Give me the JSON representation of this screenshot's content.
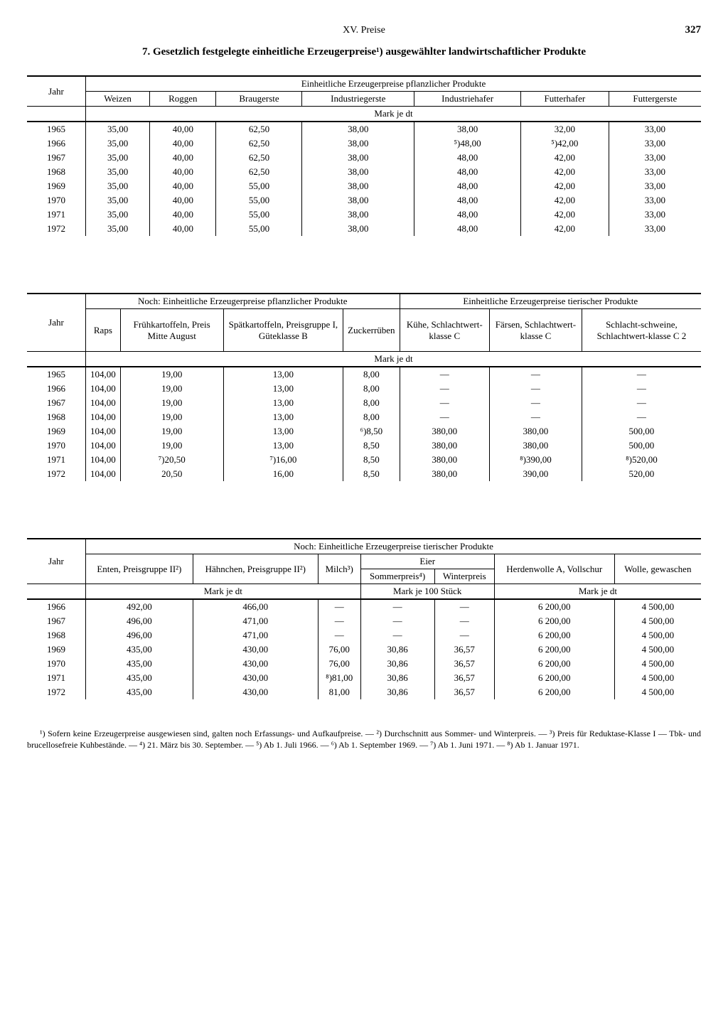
{
  "page": {
    "section": "XV. Preise",
    "number": "327",
    "title": "7. Gesetzlich festgelegte einheitliche Erzeugerpreise¹) ausgewählter landwirtschaftlicher Produkte"
  },
  "table1": {
    "span": "Einheitliche Erzeugerpreise pflanzlicher Produkte",
    "yearLabel": "Jahr",
    "cols": [
      "Weizen",
      "Roggen",
      "Braugerste",
      "Industriegerste",
      "Industriehafer",
      "Futterhafer",
      "Futtergerste"
    ],
    "unit": "Mark je dt",
    "years": [
      "1965",
      "1966",
      "1967",
      "1968",
      "1969",
      "1970",
      "1971",
      "1972"
    ],
    "data": [
      [
        "35,00",
        "40,00",
        "62,50",
        "38,00",
        "38,00",
        "32,00",
        "33,00"
      ],
      [
        "35,00",
        "40,00",
        "62,50",
        "38,00",
        "⁵)48,00",
        "⁵)42,00",
        "33,00"
      ],
      [
        "35,00",
        "40,00",
        "62,50",
        "38,00",
        "48,00",
        "42,00",
        "33,00"
      ],
      [
        "35,00",
        "40,00",
        "62,50",
        "38,00",
        "48,00",
        "42,00",
        "33,00"
      ],
      [
        "35,00",
        "40,00",
        "55,00",
        "38,00",
        "48,00",
        "42,00",
        "33,00"
      ],
      [
        "35,00",
        "40,00",
        "55,00",
        "38,00",
        "48,00",
        "42,00",
        "33,00"
      ],
      [
        "35,00",
        "40,00",
        "55,00",
        "38,00",
        "48,00",
        "42,00",
        "33,00"
      ],
      [
        "35,00",
        "40,00",
        "55,00",
        "38,00",
        "48,00",
        "42,00",
        "33,00"
      ]
    ]
  },
  "table2": {
    "span1": "Noch: Einheitliche Erzeugerpreise pflanzlicher Produkte",
    "span2": "Einheitliche Erzeugerpreise tierischer Produkte",
    "yearLabel": "Jahr",
    "cols": [
      "Raps",
      "Frühkartoffeln, Preis Mitte August",
      "Spätkartoffeln, Preisgruppe I, Güteklasse B",
      "Zuckerrüben",
      "Kühe, Schlachtwert-klasse C",
      "Färsen, Schlachtwert-klasse C",
      "Schlacht-schweine, Schlachtwert-klasse C 2"
    ],
    "unit": "Mark je dt",
    "years": [
      "1965",
      "1966",
      "1967",
      "1968",
      "1969",
      "1970",
      "1971",
      "1972"
    ],
    "data": [
      [
        "104,00",
        "19,00",
        "13,00",
        "8,00",
        "—",
        "—",
        "—"
      ],
      [
        "104,00",
        "19,00",
        "13,00",
        "8,00",
        "—",
        "—",
        "—"
      ],
      [
        "104,00",
        "19,00",
        "13,00",
        "8,00",
        "—",
        "—",
        "—"
      ],
      [
        "104,00",
        "19,00",
        "13,00",
        "8,00",
        "—",
        "—",
        "—"
      ],
      [
        "104,00",
        "19,00",
        "13,00",
        "⁶)8,50",
        "380,00",
        "380,00",
        "500,00"
      ],
      [
        "104,00",
        "19,00",
        "13,00",
        "8,50",
        "380,00",
        "380,00",
        "500,00"
      ],
      [
        "104,00",
        "⁷)20,50",
        "⁷)16,00",
        "8,50",
        "380,00",
        "⁸)390,00",
        "⁸)520,00"
      ],
      [
        "104,00",
        "20,50",
        "16,00",
        "8,50",
        "380,00",
        "390,00",
        "520,00"
      ]
    ]
  },
  "table3": {
    "span": "Noch: Einheitliche Erzeugerpreise tierischer Produkte",
    "yearLabel": "Jahr",
    "cols": {
      "c1": "Enten, Preisgruppe II²)",
      "c2": "Hähnchen, Preisgruppe II²)",
      "c3": "Milch³)",
      "eier": "Eier",
      "c4": "Sommerpreis⁴)",
      "c5": "Winterpreis",
      "c6": "Herdenwolle A, Vollschur",
      "c7": "Wolle, gewaschen"
    },
    "unit1": "Mark je dt",
    "unit2": "Mark je 100 Stück",
    "unit3": "Mark je dt",
    "years": [
      "1966",
      "1967",
      "1968",
      "1969",
      "1970",
      "1971",
      "1972"
    ],
    "data": [
      [
        "492,00",
        "466,00",
        "—",
        "—",
        "—",
        "6 200,00",
        "4 500,00"
      ],
      [
        "496,00",
        "471,00",
        "—",
        "—",
        "—",
        "6 200,00",
        "4 500,00"
      ],
      [
        "496,00",
        "471,00",
        "—",
        "—",
        "—",
        "6 200,00",
        "4 500,00"
      ],
      [
        "435,00",
        "430,00",
        "76,00",
        "30,86",
        "36,57",
        "6 200,00",
        "4 500,00"
      ],
      [
        "435,00",
        "430,00",
        "76,00",
        "30,86",
        "36,57",
        "6 200,00",
        "4 500,00"
      ],
      [
        "435,00",
        "430,00",
        "⁸)81,00",
        "30,86",
        "36,57",
        "6 200,00",
        "4 500,00"
      ],
      [
        "435,00",
        "430,00",
        "81,00",
        "30,86",
        "36,57",
        "6 200,00",
        "4 500,00"
      ]
    ]
  },
  "footnote": "¹) Sofern keine Erzeugerpreise ausgewiesen sind, galten noch Erfassungs- und Aufkaufpreise. — ²) Durchschnitt aus Sommer- und Winterpreis. — ³) Preis für Reduktase-Klasse I — Tbk- und brucellosefreie Kuhbestände. — ⁴) 21. März bis 30. September. — ⁵) Ab 1. Juli 1966. — ⁶) Ab 1. September 1969. — ⁷) Ab 1. Juni 1971. — ⁸) Ab 1. Januar 1971."
}
